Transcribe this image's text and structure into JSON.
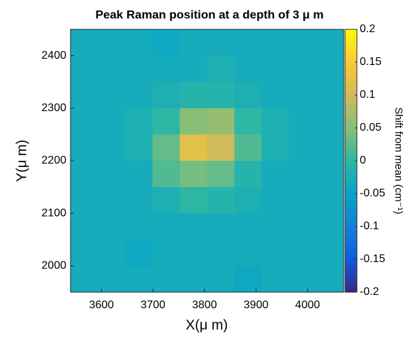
{
  "chart_data": {
    "type": "heatmap",
    "title": "Peak Raman position at a depth of 3 μ m",
    "x_label": "X(μ m)",
    "y_label": "Y(μ m)",
    "colorbar_label": "Shift from mean (cm⁻¹)",
    "x": [
      3566.5,
      3619.5,
      3672.5,
      3725.5,
      3778.5,
      3831.5,
      3884.5,
      3937.5,
      3990.5,
      4043.5
    ],
    "y": [
      2425,
      2375,
      2325,
      2275,
      2225,
      2175,
      2125,
      2075,
      2025,
      1975
    ],
    "z": [
      [
        -0.03,
        -0.03,
        -0.03,
        -0.04,
        -0.03,
        -0.03,
        -0.03,
        -0.03,
        -0.03,
        -0.03
      ],
      [
        -0.03,
        -0.03,
        -0.03,
        -0.03,
        -0.03,
        -0.02,
        -0.03,
        -0.03,
        -0.03,
        -0.03
      ],
      [
        -0.03,
        -0.03,
        -0.03,
        -0.02,
        -0.01,
        -0.01,
        -0.02,
        -0.03,
        -0.03,
        -0.03
      ],
      [
        -0.03,
        -0.03,
        -0.02,
        0.0,
        0.05,
        0.06,
        0.0,
        -0.02,
        -0.03,
        -0.03
      ],
      [
        -0.03,
        -0.03,
        -0.02,
        0.03,
        0.12,
        0.1,
        0.02,
        -0.02,
        -0.03,
        -0.03
      ],
      [
        -0.03,
        -0.03,
        -0.03,
        0.02,
        0.04,
        0.03,
        -0.01,
        -0.03,
        -0.03,
        -0.03
      ],
      [
        -0.03,
        -0.03,
        -0.03,
        -0.02,
        0.0,
        -0.01,
        -0.02,
        -0.03,
        -0.03,
        -0.03
      ],
      [
        -0.03,
        -0.03,
        -0.03,
        -0.03,
        -0.03,
        -0.03,
        -0.03,
        -0.03,
        -0.03,
        -0.03
      ],
      [
        -0.03,
        -0.03,
        -0.04,
        -0.03,
        -0.03,
        -0.03,
        -0.03,
        -0.03,
        -0.03,
        -0.03
      ],
      [
        -0.03,
        -0.03,
        -0.03,
        -0.03,
        -0.03,
        -0.03,
        -0.04,
        -0.03,
        -0.03,
        -0.03
      ]
    ],
    "xlim": [
      3540,
      4070
    ],
    "ylim": [
      1950,
      2450
    ],
    "xticks": [
      3600,
      3700,
      3800,
      3900,
      4000
    ],
    "yticks": [
      2000,
      2100,
      2200,
      2300,
      2400
    ],
    "clim": [
      -0.2,
      0.2
    ],
    "cticks": [
      -0.2,
      -0.15,
      -0.1,
      -0.05,
      0,
      0.05,
      0.1,
      0.15,
      0.2
    ],
    "colormap": [
      "#352a87",
      "#0f5cdd",
      "#1481d6",
      "#06a4ca",
      "#2eb7a4",
      "#87bf77",
      "#d1bb59",
      "#fec832",
      "#f9fb0e"
    ]
  }
}
